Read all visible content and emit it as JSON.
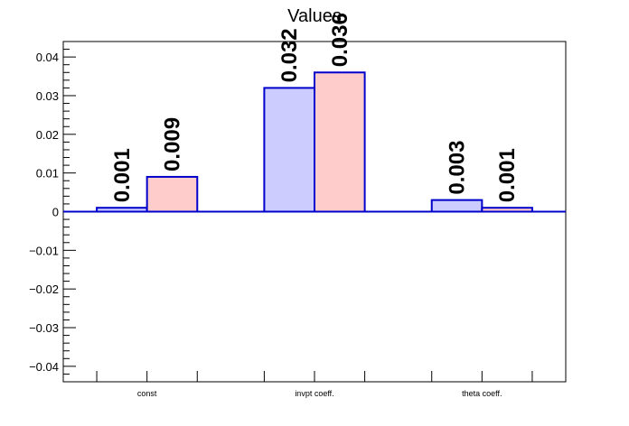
{
  "chart_data": {
    "type": "bar",
    "title": "Values",
    "xlabel": "",
    "ylabel": "",
    "categories": [
      "const",
      "invpt coeff.",
      "theta coeff."
    ],
    "series": [
      {
        "values": [
          0.001,
          0.032,
          0.003
        ],
        "labels": [
          "0.001",
          "0.032",
          "0.003"
        ],
        "fill": "#ccccff",
        "stroke": "#0000cc"
      },
      {
        "values": [
          0.009,
          0.036,
          0.001
        ],
        "labels": [
          "0.009",
          "0.036",
          "0.001"
        ],
        "fill": "#ffcccc",
        "stroke": "#0000cc"
      }
    ],
    "ylim": [
      -0.044,
      0.044
    ],
    "yticks": [
      -0.04,
      -0.03,
      -0.02,
      -0.01,
      0,
      0.01,
      0.02,
      0.03,
      0.04
    ],
    "ytick_labels": [
      "−0.04",
      "−0.03",
      "−0.02",
      "−0.01",
      "0",
      "0.01",
      "0.02",
      "0.03",
      "0.04"
    ],
    "grid": false,
    "legend": "none"
  }
}
